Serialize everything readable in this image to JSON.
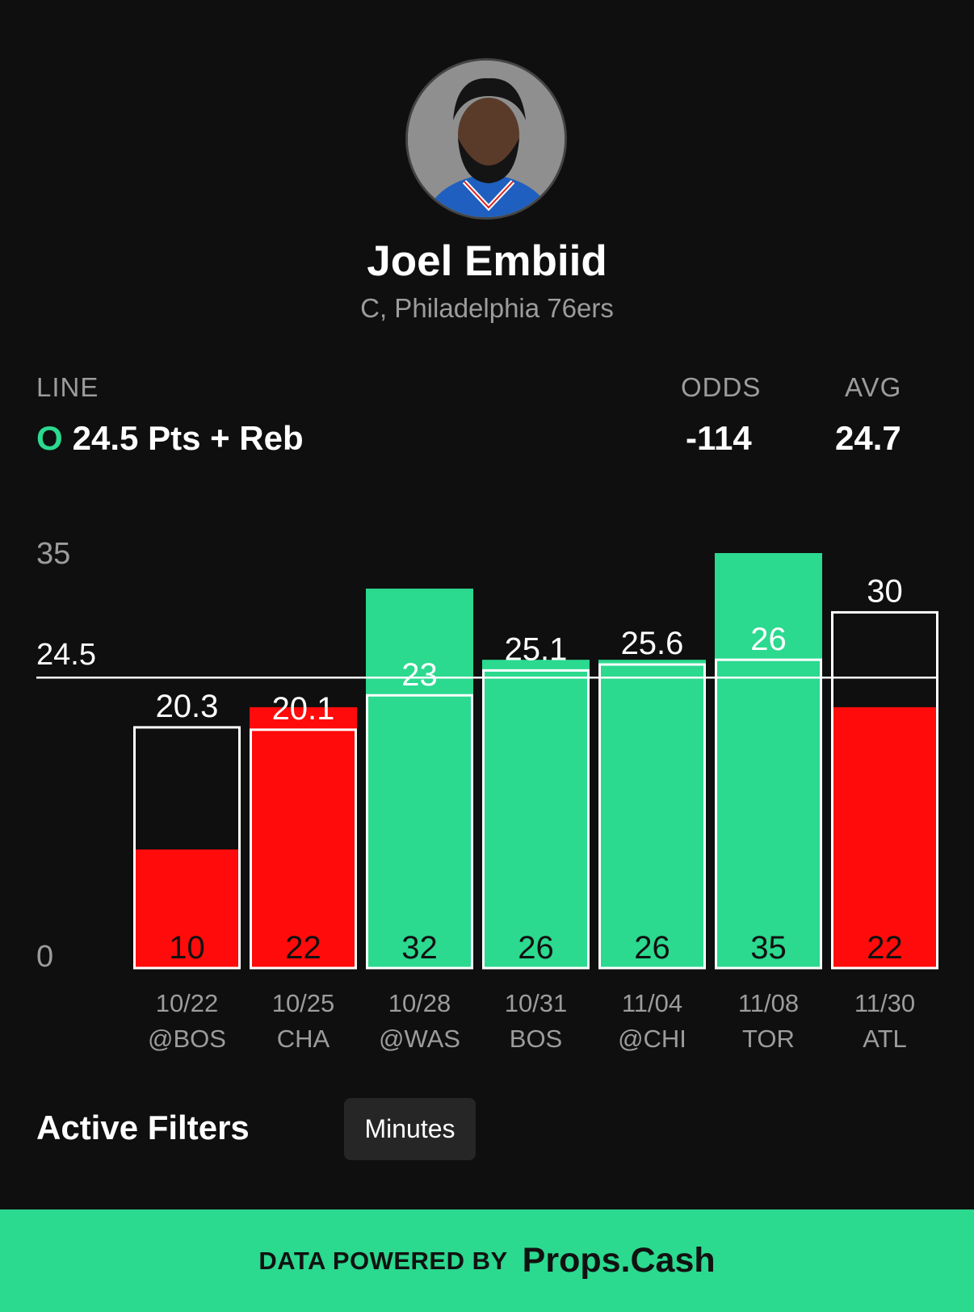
{
  "player": {
    "name": "Joel Embiid",
    "meta": "C, Philadelphia 76ers",
    "avatar_icon": "player-headshot"
  },
  "stats": {
    "line_label": "LINE",
    "over_mark": "O",
    "line_value": "24.5 Pts + Reb",
    "odds_label": "ODDS",
    "odds_value": "-114",
    "avg_label": "AVG",
    "avg_value": "24.7"
  },
  "chart_data": {
    "type": "bar",
    "title": "",
    "xlabel": "",
    "ylabel": "",
    "ylim": [
      0,
      35
    ],
    "y_ticks": [
      "0",
      "35"
    ],
    "threshold": {
      "value": 24.5,
      "label": "24.5"
    },
    "categories": [
      {
        "date": "10/22",
        "opponent": "@BOS"
      },
      {
        "date": "10/25",
        "opponent": "CHA"
      },
      {
        "date": "10/28",
        "opponent": "@WAS"
      },
      {
        "date": "10/31",
        "opponent": "BOS"
      },
      {
        "date": "11/04",
        "opponent": "@CHI"
      },
      {
        "date": "11/08",
        "opponent": "TOR"
      },
      {
        "date": "11/30",
        "opponent": "ATL"
      }
    ],
    "series": [
      {
        "values": [
          10,
          22,
          32,
          26,
          26,
          35,
          22
        ],
        "labels": [
          "10",
          "22",
          "32",
          "26",
          "26",
          "35",
          "22"
        ],
        "result": [
          "under",
          "under",
          "over",
          "over",
          "over",
          "over",
          "under"
        ]
      },
      {
        "values": [
          20.3,
          20.1,
          23,
          25.1,
          25.6,
          26,
          30
        ],
        "labels": [
          "20.3",
          "20.1",
          "23",
          "25.1",
          "25.6",
          "26",
          "30"
        ],
        "style": "outline"
      }
    ],
    "colors": {
      "over": "#2bd98f",
      "under": "#ff0b0b",
      "outline": "#ffffff",
      "threshold": "#ffffff",
      "axis_text": "#9c9c9c"
    }
  },
  "filters": {
    "title": "Active Filters",
    "chips": [
      "Minutes"
    ]
  },
  "footer": {
    "prefix": "DATA POWERED BY",
    "brand": "Props.Cash"
  }
}
